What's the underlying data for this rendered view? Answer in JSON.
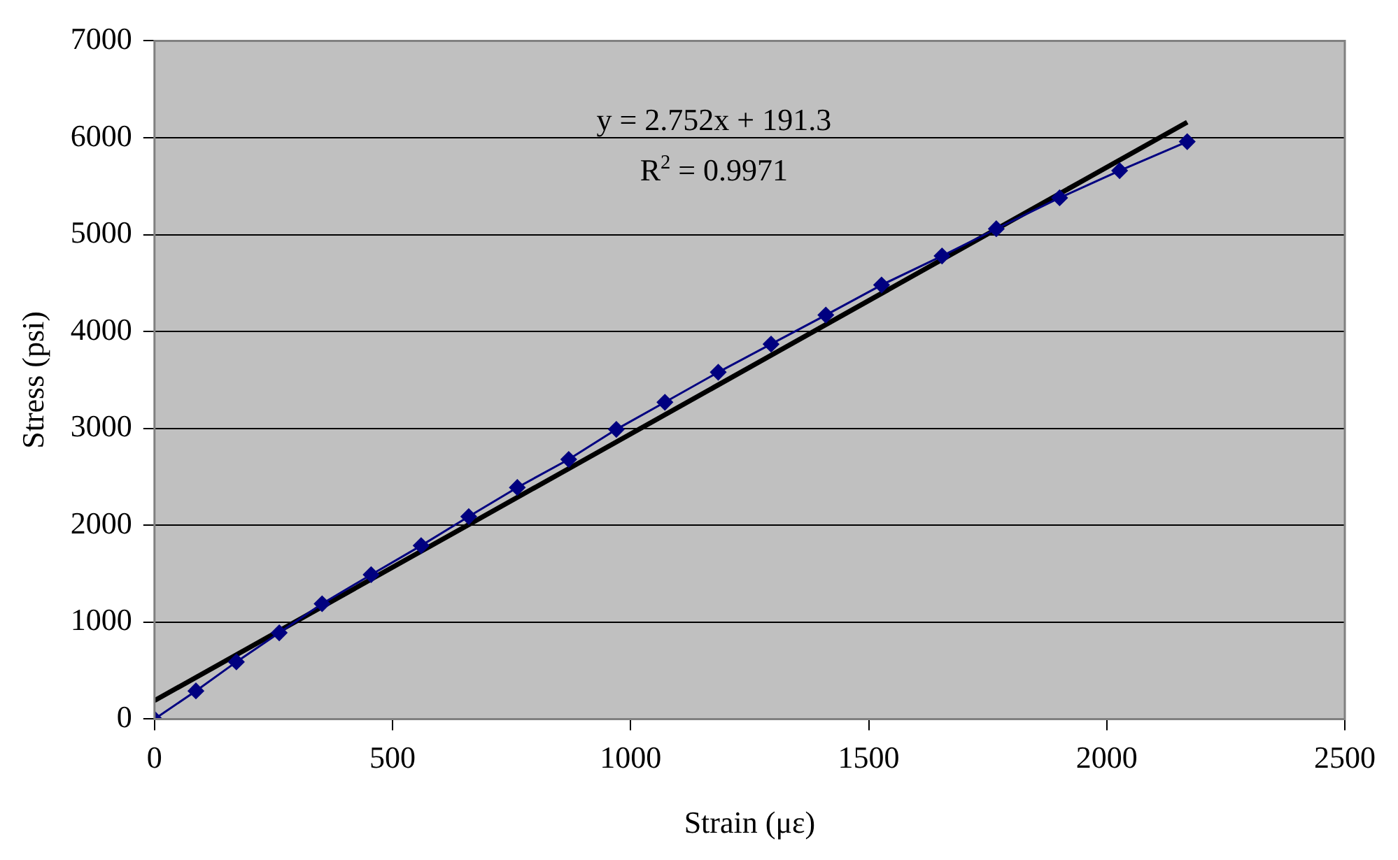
{
  "chart_data": {
    "type": "line",
    "xlabel": "Strain (με)",
    "ylabel": "Stress (psi)",
    "xlim": [
      0,
      2500
    ],
    "xticks": [
      0,
      500,
      1000,
      1500,
      2000,
      2500
    ],
    "ylim": [
      0,
      7000
    ],
    "yticks": [
      0,
      1000,
      2000,
      3000,
      4000,
      5000,
      6000,
      7000
    ],
    "grid": "y",
    "marker": "diamond",
    "line_style": "solid",
    "series": [
      {
        "type": "line",
        "color": "#000080",
        "x": [
          0,
          87,
          172,
          262,
          352,
          455,
          560,
          660,
          762,
          870,
          970,
          1072,
          1184,
          1295,
          1410,
          1527,
          1654,
          1768,
          1901,
          2027,
          2169
        ],
        "values": [
          0,
          290,
          590,
          890,
          1190,
          1490,
          1790,
          2090,
          2390,
          2680,
          2990,
          3270,
          3580,
          3870,
          4170,
          4480,
          4780,
          5060,
          5380,
          5660,
          5960
        ]
      },
      {
        "type": "line",
        "color": "#000000",
        "marker": "none",
        "x": [
          0,
          2169
        ],
        "values": [
          190,
          6160
        ]
      }
    ],
    "annotations": [
      "y = 2.752x + 191.3",
      "R$^{2}$ = 0.9971"
    ]
  }
}
